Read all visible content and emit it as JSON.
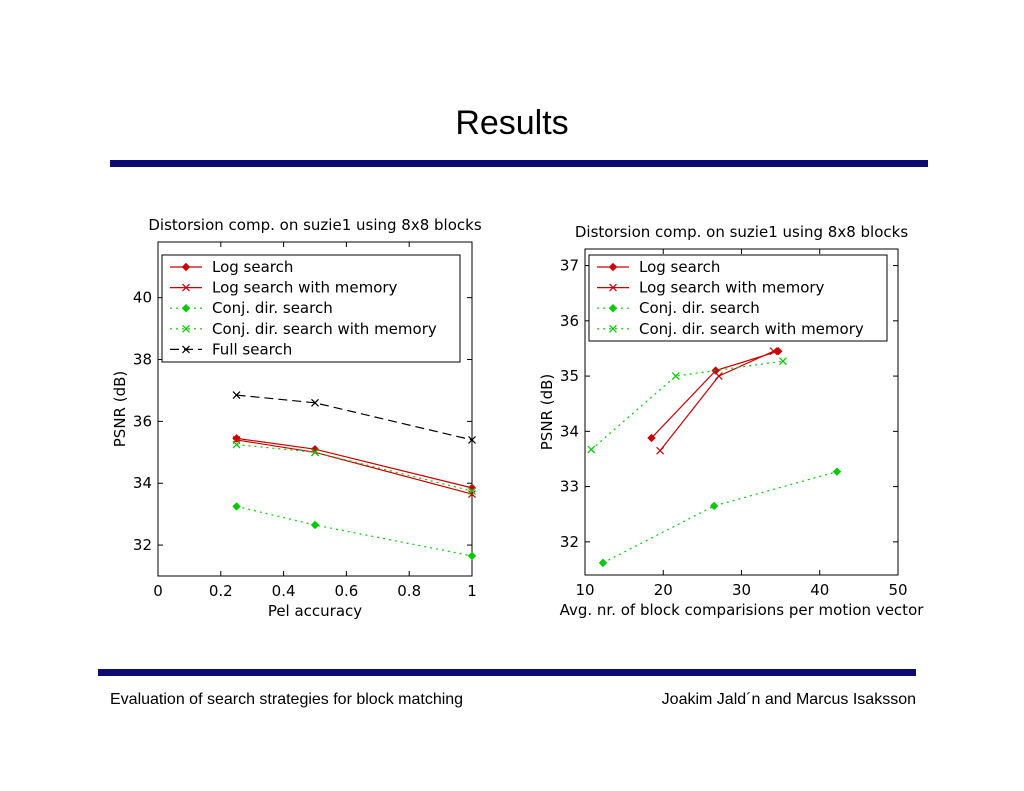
{
  "slide": {
    "title": "Results",
    "footer_left": "Evaluation of search strategies for block matching",
    "footer_right": "Joakim Jald´n and Marcus Isaksson",
    "accent_color": "#0b0b72"
  },
  "chart_data": [
    {
      "type": "line",
      "title": "Distorsion comp. on suzie1 using 8x8 blocks",
      "xlabel": "Pel accuracy",
      "ylabel": "PSNR (dB)",
      "xlim": [
        0,
        1
      ],
      "ylim": [
        31,
        41.8
      ],
      "xticks": [
        0,
        0.2,
        0.4,
        0.6,
        0.8,
        1
      ],
      "xtick_labels": [
        "0",
        "0.2",
        "0.4",
        "0.6",
        "0.8",
        "1"
      ],
      "yticks": [
        32,
        34,
        36,
        38,
        40
      ],
      "ytick_labels": [
        "32",
        "34",
        "36",
        "38",
        "40"
      ],
      "grid": false,
      "legend_position": "top",
      "series": [
        {
          "name": "Log search",
          "color": "#cc0000",
          "line": "solid",
          "marker": "diamond",
          "x": [
            0.25,
            0.5,
            1
          ],
          "y": [
            35.45,
            35.1,
            33.85
          ]
        },
        {
          "name": "Log search with memory",
          "color": "#cc0000",
          "line": "solid",
          "marker": "x",
          "x": [
            0.25,
            0.5,
            1
          ],
          "y": [
            35.4,
            35.0,
            33.65
          ]
        },
        {
          "name": "Conj. dir. search",
          "color": "#00cc00",
          "line": "dotted",
          "marker": "diamond",
          "x": [
            0.25,
            0.5,
            1
          ],
          "y": [
            33.25,
            32.65,
            31.65
          ]
        },
        {
          "name": "Conj. dir. search with memory",
          "color": "#00cc00",
          "line": "dotted",
          "marker": "x",
          "x": [
            0.25,
            0.5,
            1
          ],
          "y": [
            35.25,
            35.0,
            33.75
          ]
        },
        {
          "name": "Full search",
          "color": "#000000",
          "line": "dashed",
          "marker": "x",
          "x": [
            0.25,
            0.5,
            1
          ],
          "y": [
            36.85,
            36.6,
            35.4
          ]
        }
      ]
    },
    {
      "type": "line",
      "title": "Distorsion comp. on suzie1 using 8x8 blocks",
      "xlabel": "Avg. nr. of block comparisions per motion vector",
      "ylabel": "PSNR (dB)",
      "xlim": [
        10,
        50
      ],
      "ylim": [
        31.4,
        37.3
      ],
      "xticks": [
        10,
        20,
        30,
        40,
        50
      ],
      "xtick_labels": [
        "10",
        "20",
        "30",
        "40",
        "50"
      ],
      "yticks": [
        32,
        33,
        34,
        35,
        36,
        37
      ],
      "ytick_labels": [
        "32",
        "33",
        "34",
        "35",
        "36",
        "37"
      ],
      "grid": false,
      "legend_position": "top",
      "series": [
        {
          "name": "Log search",
          "color": "#cc0000",
          "line": "solid",
          "marker": "diamond",
          "x": [
            18.5,
            26.7,
            34.7
          ],
          "y": [
            33.88,
            35.1,
            35.45
          ]
        },
        {
          "name": "Log search with memory",
          "color": "#cc0000",
          "line": "solid",
          "marker": "x",
          "x": [
            19.6,
            27.1,
            34.1
          ],
          "y": [
            33.65,
            35.0,
            35.45
          ]
        },
        {
          "name": "Conj. dir. search",
          "color": "#00cc00",
          "line": "dotted",
          "marker": "diamond",
          "x": [
            12.3,
            26.5,
            42.2
          ],
          "y": [
            31.62,
            32.65,
            33.27
          ]
        },
        {
          "name": "Conj. dir. search with memory",
          "color": "#00cc00",
          "line": "dotted",
          "marker": "x",
          "x": [
            10.8,
            21.6,
            35.3
          ],
          "y": [
            33.67,
            35.0,
            35.27
          ]
        }
      ]
    }
  ]
}
